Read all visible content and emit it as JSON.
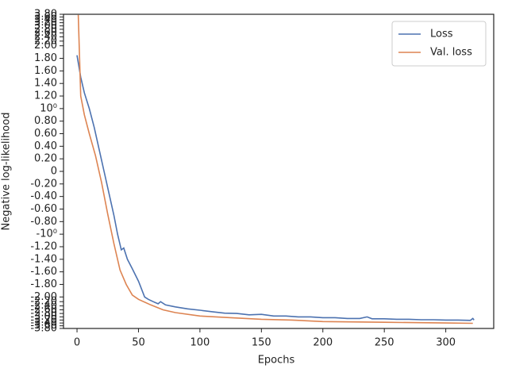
{
  "chart_data": {
    "type": "line",
    "xlabel": "Epochs",
    "ylabel": "Negative log-likelihood",
    "yscale": "symlog",
    "linthresh": 2,
    "legend": "upper right",
    "xlim": [
      -11,
      339
    ],
    "ylim": [
      -3.8,
      3.8
    ],
    "xticks": [
      0,
      50,
      100,
      150,
      200,
      250,
      300
    ],
    "yticks": [
      {
        "value": 3.8,
        "label": "3.80"
      },
      {
        "value": 3.6,
        "label": "3.60"
      },
      {
        "value": 3.4,
        "label": "3.40"
      },
      {
        "value": 3.2,
        "label": "3.20"
      },
      {
        "value": 3.0,
        "label": "3.00"
      },
      {
        "value": 2.8,
        "label": "2.80"
      },
      {
        "value": 2.6,
        "label": "2.60"
      },
      {
        "value": 2.4,
        "label": "2.40"
      },
      {
        "value": 2.2,
        "label": "2.20"
      },
      {
        "value": 2.0,
        "label": "2.00"
      },
      {
        "value": 1.8,
        "label": "1.80"
      },
      {
        "value": 1.6,
        "label": "1.60"
      },
      {
        "value": 1.4,
        "label": "1.40"
      },
      {
        "value": 1.2,
        "label": "1.20"
      },
      {
        "value": 1,
        "label": "10⁰"
      },
      {
        "value": 0.8,
        "label": "0.80"
      },
      {
        "value": 0.6,
        "label": "0.60"
      },
      {
        "value": 0.4,
        "label": "0.40"
      },
      {
        "value": 0.2,
        "label": "0.20"
      },
      0,
      {
        "value": -0.2,
        "label": "-0.20"
      },
      {
        "value": -0.4,
        "label": "-0.40"
      },
      {
        "value": -0.6,
        "label": "-0.60"
      },
      {
        "value": -0.8,
        "label": "-0.80"
      },
      {
        "value": -1,
        "label": "-10⁰"
      },
      {
        "value": -1.2,
        "label": "-1.20"
      },
      {
        "value": -1.4,
        "label": "-1.40"
      },
      {
        "value": -1.6,
        "label": "-1.60"
      },
      {
        "value": -1.8,
        "label": "-1.80"
      },
      {
        "value": -2.0,
        "label": "-2.00"
      },
      {
        "value": -2.2,
        "label": "-2.20"
      },
      {
        "value": -2.4,
        "label": "-2.40"
      },
      {
        "value": -2.6,
        "label": "-2.60"
      },
      {
        "value": -2.8,
        "label": "-2.80"
      },
      {
        "value": -3.0,
        "label": "-3.00"
      },
      {
        "value": -3.2,
        "label": "-3.20"
      },
      {
        "value": -3.4,
        "label": "-3.40"
      },
      {
        "value": -3.6,
        "label": "-3.60"
      },
      {
        "value": -3.8,
        "label": "-3.80"
      }
    ],
    "series": [
      {
        "name": "Loss",
        "color": "#4c72b0",
        "x": [
          0,
          3,
          6,
          10,
          14,
          18,
          22,
          26,
          30,
          33,
          36,
          38,
          41,
          45,
          50,
          55,
          58,
          62,
          66,
          68,
          72,
          80,
          90,
          100,
          110,
          120,
          130,
          140,
          150,
          160,
          170,
          180,
          190,
          200,
          210,
          220,
          230,
          236,
          240,
          250,
          260,
          270,
          280,
          290,
          300,
          310,
          320,
          322,
          323
        ],
        "values": [
          1.85,
          1.5,
          1.25,
          1.0,
          0.7,
          0.35,
          0.0,
          -0.35,
          -0.7,
          -1.0,
          -1.25,
          -1.22,
          -1.4,
          -1.55,
          -1.75,
          -2.0,
          -2.1,
          -2.2,
          -2.3,
          -2.2,
          -2.35,
          -2.45,
          -2.55,
          -2.62,
          -2.7,
          -2.78,
          -2.8,
          -2.88,
          -2.85,
          -2.95,
          -2.95,
          -3.0,
          -3.0,
          -3.05,
          -3.05,
          -3.1,
          -3.1,
          -3.0,
          -3.12,
          -3.12,
          -3.15,
          -3.15,
          -3.18,
          -3.18,
          -3.2,
          -3.2,
          -3.22,
          -3.1,
          -3.2
        ]
      },
      {
        "name": "Val. loss",
        "color": "#dd8452",
        "x": [
          1,
          3,
          6,
          10,
          15,
          20,
          25,
          30,
          35,
          40,
          45,
          50,
          60,
          70,
          80,
          100,
          125,
          150,
          175,
          200,
          250,
          300,
          322
        ],
        "values": [
          3.75,
          1.2,
          0.9,
          0.6,
          0.25,
          -0.18,
          -0.68,
          -1.15,
          -1.57,
          -1.8,
          -1.97,
          -2.1,
          -2.35,
          -2.6,
          -2.75,
          -2.95,
          -3.05,
          -3.15,
          -3.2,
          -3.3,
          -3.35,
          -3.4,
          -3.42
        ]
      }
    ]
  }
}
